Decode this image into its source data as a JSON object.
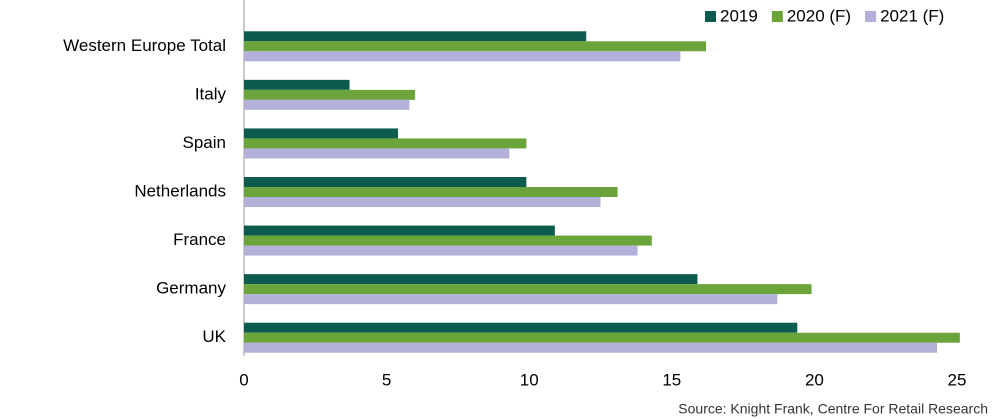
{
  "chart_data": {
    "type": "hbar",
    "categories": [
      "Western Europe Total",
      "Italy",
      "Spain",
      "Netherlands",
      "France",
      "Germany",
      "UK"
    ],
    "series": [
      {
        "name": "2019",
        "color": "#0d5a4f",
        "values": [
          12.0,
          3.7,
          5.4,
          9.9,
          10.9,
          15.9,
          19.4
        ]
      },
      {
        "name": "2020 (F)",
        "color": "#6aa43a",
        "values": [
          16.2,
          6.0,
          9.9,
          13.1,
          14.3,
          19.9,
          25.1
        ]
      },
      {
        "name": "2021 (F)",
        "color": "#b3b0da",
        "values": [
          15.3,
          5.8,
          9.3,
          12.5,
          13.8,
          18.7,
          24.3
        ]
      }
    ],
    "xlim": [
      0,
      25
    ],
    "xticks": [
      0,
      5,
      10,
      15,
      20,
      25
    ],
    "source": "Source: Knight Frank, Centre For Retail Research"
  }
}
